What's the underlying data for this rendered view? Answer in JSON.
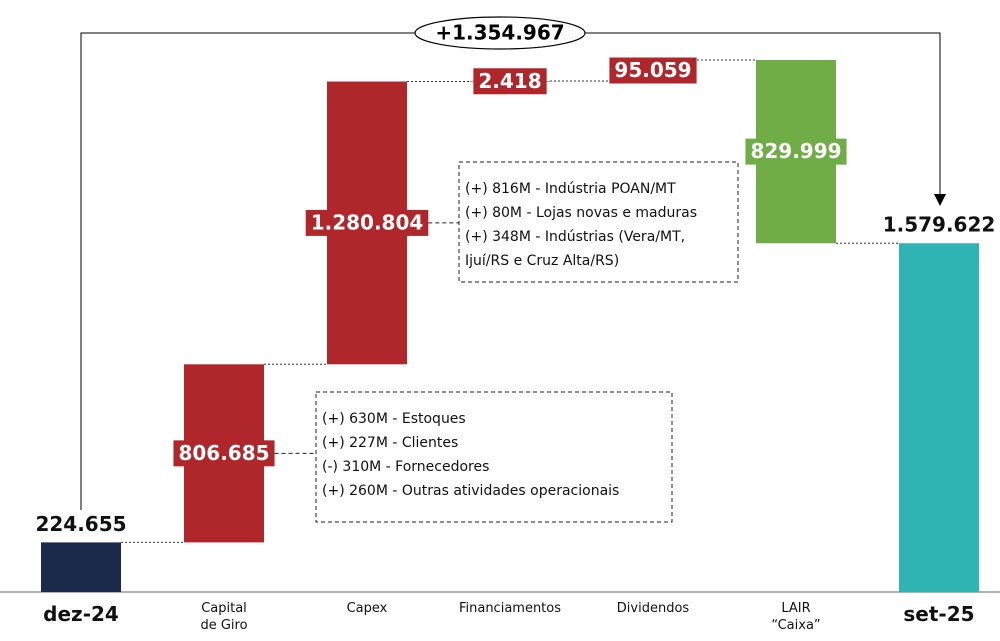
{
  "chart_data": {
    "type": "waterfall",
    "categories": [
      "dez-24",
      "Capital\nde Giro",
      "Capex",
      "Financiamentos",
      "Dividendos",
      "LAIR\n“Caixa”",
      "set-25"
    ],
    "values": [
      224655,
      806685,
      1280804,
      2418,
      95059,
      -829999,
      1579622
    ],
    "value_labels": [
      "224.655",
      "806.685",
      "1.280.804",
      "2.418",
      "95.059",
      "829.999",
      "1.579.622"
    ],
    "colors": [
      "#1b2a4a",
      "#b0272b",
      "#b0272b",
      "#b0272b",
      "#b0272b",
      "#70ad47",
      "#2fb3b3"
    ],
    "annotation": "+1.354.967",
    "notes": [
      {
        "lines": [
          "(+) 630M - Estoques",
          "(+) 227M - Clientes",
          "(-) 310M - Fornecedores",
          "(+) 260M - Outras atividades operacionais"
        ]
      },
      {
        "lines": [
          "(+) 816M - Indústria POAN/MT",
          "(+) 80M - Lojas novas e maduras",
          "(+) 348M - Indústrias (Vera/MT,",
          "Ijuí/RS e Cruz Alta/RS)"
        ]
      }
    ]
  }
}
